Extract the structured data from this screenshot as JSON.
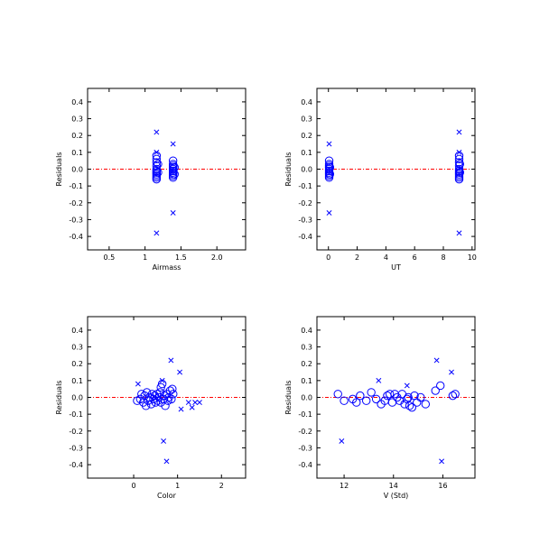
{
  "colors": {
    "axis": "#000000",
    "points": "#0000ff",
    "zero_line": "#ff0000"
  },
  "chart_data": [
    {
      "type": "scatter",
      "xlabel": "Airmass",
      "ylabel": "Residuals",
      "xlim": [
        0.2,
        2.4
      ],
      "ylim": [
        -0.48,
        0.48
      ],
      "xticks": [
        0.5,
        1.0,
        1.5,
        2.0
      ],
      "xtick_labels": [
        "0.5",
        "1",
        "1.5",
        "2.0"
      ],
      "yticks": [
        -0.4,
        -0.3,
        -0.2,
        -0.1,
        0.0,
        0.1,
        0.2,
        0.3,
        0.4
      ],
      "ytick_labels": [
        "-0.4",
        "-0.3",
        "-0.2",
        "-0.1",
        "0.0",
        "0.1",
        "0.2",
        "0.3",
        "0.4"
      ],
      "zero_line": 0,
      "circles": [
        [
          1.16,
          0.08
        ],
        [
          1.16,
          0.06
        ],
        [
          1.16,
          0.04
        ],
        [
          1.16,
          0.02
        ],
        [
          1.16,
          0.0
        ],
        [
          1.16,
          -0.01
        ],
        [
          1.16,
          -0.02
        ],
        [
          1.16,
          -0.03
        ],
        [
          1.16,
          -0.04
        ],
        [
          1.16,
          -0.05
        ],
        [
          1.16,
          -0.06
        ],
        [
          1.18,
          0.03
        ],
        [
          1.18,
          -0.02
        ],
        [
          1.39,
          0.05
        ],
        [
          1.39,
          0.03
        ],
        [
          1.39,
          0.02
        ],
        [
          1.39,
          0.01
        ],
        [
          1.39,
          0.0
        ],
        [
          1.39,
          -0.01
        ],
        [
          1.39,
          -0.02
        ],
        [
          1.39,
          -0.03
        ],
        [
          1.39,
          -0.04
        ],
        [
          1.39,
          -0.05
        ],
        [
          1.41,
          0.01
        ],
        [
          1.41,
          -0.03
        ]
      ],
      "crosses": [
        [
          1.16,
          0.22
        ],
        [
          1.16,
          0.1
        ],
        [
          1.16,
          -0.38
        ],
        [
          1.39,
          0.15
        ],
        [
          1.39,
          -0.26
        ]
      ]
    },
    {
      "type": "scatter",
      "xlabel": "UT",
      "ylabel": "Residuals",
      "xlim": [
        -0.8,
        10.2
      ],
      "ylim": [
        -0.48,
        0.48
      ],
      "xticks": [
        0,
        2,
        4,
        6,
        8,
        10
      ],
      "xtick_labels": [
        "0",
        "2",
        "4",
        "6",
        "8",
        "10"
      ],
      "yticks": [
        -0.4,
        -0.3,
        -0.2,
        -0.1,
        0.0,
        0.1,
        0.2,
        0.3,
        0.4
      ],
      "ytick_labels": [
        "-0.4",
        "-0.3",
        "-0.2",
        "-0.1",
        "0.0",
        "0.1",
        "0.2",
        "0.3",
        "0.4"
      ],
      "zero_line": 0,
      "circles": [
        [
          0.05,
          0.05
        ],
        [
          0.05,
          0.03
        ],
        [
          0.05,
          0.02
        ],
        [
          0.05,
          0.01
        ],
        [
          0.05,
          0.0
        ],
        [
          0.05,
          -0.01
        ],
        [
          0.05,
          -0.02
        ],
        [
          0.05,
          -0.03
        ],
        [
          0.05,
          -0.04
        ],
        [
          0.05,
          -0.05
        ],
        [
          0.1,
          0.01
        ],
        [
          0.1,
          -0.03
        ],
        [
          9.1,
          0.08
        ],
        [
          9.1,
          0.06
        ],
        [
          9.1,
          0.04
        ],
        [
          9.1,
          0.02
        ],
        [
          9.1,
          0.0
        ],
        [
          9.1,
          -0.01
        ],
        [
          9.1,
          -0.02
        ],
        [
          9.1,
          -0.03
        ],
        [
          9.1,
          -0.04
        ],
        [
          9.1,
          -0.05
        ],
        [
          9.1,
          -0.06
        ],
        [
          9.15,
          0.03
        ],
        [
          9.15,
          -0.02
        ]
      ],
      "crosses": [
        [
          0.05,
          0.15
        ],
        [
          0.05,
          -0.26
        ],
        [
          9.1,
          0.22
        ],
        [
          9.1,
          0.1
        ],
        [
          9.1,
          -0.38
        ]
      ]
    },
    {
      "type": "scatter",
      "xlabel": "Color",
      "ylabel": "Residuals",
      "xlim": [
        -1.05,
        2.55
      ],
      "ylim": [
        -0.48,
        0.48
      ],
      "xticks": [
        0,
        1,
        2
      ],
      "xtick_labels": [
        "0",
        "1",
        "2"
      ],
      "yticks": [
        -0.4,
        -0.3,
        -0.2,
        -0.1,
        0.0,
        0.1,
        0.2,
        0.3,
        0.4
      ],
      "ytick_labels": [
        "-0.4",
        "-0.3",
        "-0.2",
        "-0.1",
        "0.0",
        "0.1",
        "0.2",
        "0.3",
        "0.4"
      ],
      "zero_line": 0,
      "circles": [
        [
          0.08,
          -0.02
        ],
        [
          0.15,
          -0.01
        ],
        [
          0.18,
          0.02
        ],
        [
          0.22,
          -0.03
        ],
        [
          0.25,
          0.01
        ],
        [
          0.28,
          -0.05
        ],
        [
          0.3,
          0.03
        ],
        [
          0.33,
          -0.02
        ],
        [
          0.36,
          0.0
        ],
        [
          0.4,
          -0.04
        ],
        [
          0.42,
          0.02
        ],
        [
          0.45,
          -0.01
        ],
        [
          0.48,
          0.01
        ],
        [
          0.5,
          -0.03
        ],
        [
          0.53,
          0.02
        ],
        [
          0.55,
          -0.02
        ],
        [
          0.58,
          0.0
        ],
        [
          0.6,
          0.03
        ],
        [
          0.62,
          -0.03
        ],
        [
          0.65,
          0.08
        ],
        [
          0.68,
          -0.01
        ],
        [
          0.7,
          0.01
        ],
        [
          0.72,
          -0.05
        ],
        [
          0.75,
          0.02
        ],
        [
          0.78,
          -0.02
        ],
        [
          0.8,
          0.0
        ],
        [
          0.83,
          0.04
        ],
        [
          0.86,
          -0.01
        ],
        [
          0.9,
          0.02
        ],
        [
          0.88,
          0.05
        ],
        [
          0.62,
          0.06
        ]
      ],
      "crosses": [
        [
          0.1,
          0.08
        ],
        [
          0.65,
          0.1
        ],
        [
          0.68,
          -0.26
        ],
        [
          0.75,
          -0.38
        ],
        [
          0.85,
          0.22
        ],
        [
          1.05,
          0.15
        ],
        [
          1.08,
          -0.07
        ],
        [
          1.25,
          -0.03
        ],
        [
          1.33,
          -0.06
        ],
        [
          1.4,
          -0.03
        ],
        [
          1.5,
          -0.03
        ]
      ]
    },
    {
      "type": "scatter",
      "xlabel": "V (Std)",
      "ylabel": "Residuals",
      "xlim": [
        10.9,
        17.3
      ],
      "ylim": [
        -0.48,
        0.48
      ],
      "xticks": [
        12,
        14,
        16
      ],
      "xtick_labels": [
        "12",
        "14",
        "16"
      ],
      "yticks": [
        -0.4,
        -0.3,
        -0.2,
        -0.1,
        0.0,
        0.1,
        0.2,
        0.3,
        0.4
      ],
      "ytick_labels": [
        "-0.4",
        "-0.3",
        "-0.2",
        "-0.1",
        "0.0",
        "0.1",
        "0.2",
        "0.3",
        "0.4"
      ],
      "zero_line": 0,
      "circles": [
        [
          11.75,
          0.02
        ],
        [
          12.0,
          -0.02
        ],
        [
          12.35,
          -0.01
        ],
        [
          12.5,
          -0.03
        ],
        [
          12.65,
          0.01
        ],
        [
          12.9,
          -0.02
        ],
        [
          13.1,
          0.03
        ],
        [
          13.3,
          -0.01
        ],
        [
          13.5,
          -0.04
        ],
        [
          13.65,
          -0.02
        ],
        [
          13.75,
          0.01
        ],
        [
          13.85,
          0.02
        ],
        [
          13.95,
          -0.03
        ],
        [
          14.05,
          0.02
        ],
        [
          14.15,
          0.0
        ],
        [
          14.25,
          -0.02
        ],
        [
          14.35,
          0.02
        ],
        [
          14.45,
          -0.04
        ],
        [
          14.55,
          -0.01
        ],
        [
          14.65,
          -0.05
        ],
        [
          14.75,
          -0.06
        ],
        [
          14.85,
          0.01
        ],
        [
          14.95,
          -0.03
        ],
        [
          15.1,
          0.0
        ],
        [
          15.3,
          -0.04
        ],
        [
          15.7,
          0.04
        ],
        [
          15.9,
          0.07
        ],
        [
          16.5,
          0.02
        ],
        [
          16.4,
          0.01
        ],
        [
          14.6,
          0.0
        ]
      ],
      "crosses": [
        [
          11.9,
          -0.26
        ],
        [
          13.4,
          0.1
        ],
        [
          14.55,
          0.07
        ],
        [
          15.75,
          0.22
        ],
        [
          15.95,
          -0.38
        ],
        [
          16.35,
          0.15
        ]
      ]
    }
  ]
}
